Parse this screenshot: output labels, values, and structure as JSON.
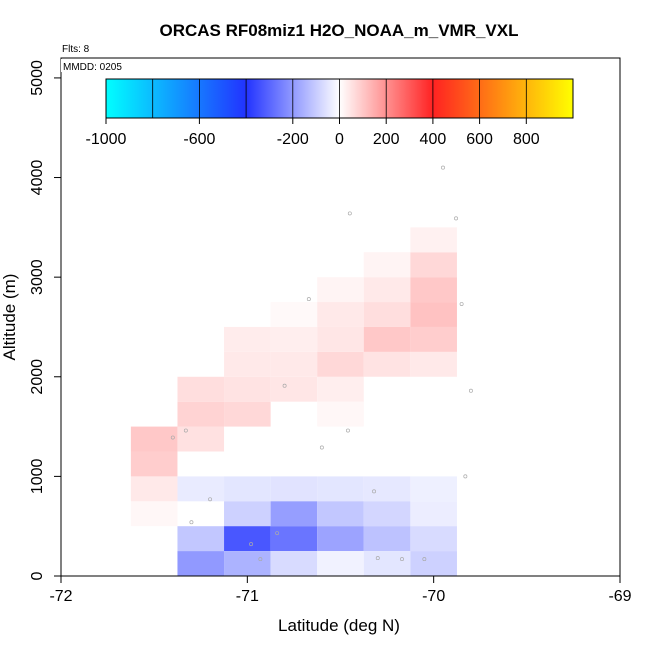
{
  "chart_data": {
    "type": "heatmap",
    "title": "ORCAS RF08miz1 H2O_NOAA_m_VMR_VXL",
    "xlabel": "Latitude (deg N)",
    "ylabel": "Altitude (m)",
    "xlim": [
      -72,
      -69
    ],
    "ylim": [
      0,
      5200
    ],
    "x_ticks": [
      -72,
      -71,
      -70,
      -69
    ],
    "x_tick_labels": [
      "-72",
      "-71",
      "-70",
      "-69"
    ],
    "y_ticks": [
      0,
      1000,
      2000,
      3000,
      4000,
      5000
    ],
    "y_tick_labels": [
      "0",
      "1000",
      "2000",
      "3000",
      "4000",
      "5000"
    ],
    "annotation_flts": "Flts: 8",
    "annotation_mmdd": "MMDD: 0205",
    "colorbar": {
      "range": [
        -1000,
        1000
      ],
      "ticks": [
        -1000,
        -600,
        -200,
        0,
        200,
        400,
        600,
        800
      ],
      "tick_labels": [
        "-1000",
        "-600",
        "-200",
        "0",
        "200",
        "400",
        "600",
        "800"
      ],
      "stops": [
        {
          "v": -1000,
          "color": "#00ffff"
        },
        {
          "v": -400,
          "color": "#2233ff"
        },
        {
          "v": 0,
          "color": "#ffffff"
        },
        {
          "v": 400,
          "color": "#ff2222"
        },
        {
          "v": 1000,
          "color": "#ffff00"
        }
      ]
    },
    "cell_width_deg": 0.25,
    "cell_height_m": 250,
    "cells": [
      {
        "lat": -71.5,
        "alt": 500,
        "value": 15
      },
      {
        "lat": -71.5,
        "alt": 750,
        "value": 40
      },
      {
        "lat": -71.5,
        "alt": 1000,
        "value": 90
      },
      {
        "lat": -71.5,
        "alt": 1250,
        "value": 100
      },
      {
        "lat": -71.25,
        "alt": 1250,
        "value": 55
      },
      {
        "lat": -71.25,
        "alt": 1500,
        "value": 80
      },
      {
        "lat": -71.25,
        "alt": 1750,
        "value": 60
      },
      {
        "lat": -71.0,
        "alt": 1500,
        "value": 70
      },
      {
        "lat": -71.0,
        "alt": 1750,
        "value": 50
      },
      {
        "lat": -71.0,
        "alt": 2000,
        "value": 40
      },
      {
        "lat": -71.0,
        "alt": 2250,
        "value": 35
      },
      {
        "lat": -70.75,
        "alt": 1750,
        "value": 45
      },
      {
        "lat": -70.75,
        "alt": 2000,
        "value": 40
      },
      {
        "lat": -70.75,
        "alt": 2250,
        "value": 30
      },
      {
        "lat": -70.75,
        "alt": 2500,
        "value": 10
      },
      {
        "lat": -70.5,
        "alt": 1500,
        "value": 15
      },
      {
        "lat": -70.5,
        "alt": 1750,
        "value": 30
      },
      {
        "lat": -70.5,
        "alt": 2000,
        "value": 70
      },
      {
        "lat": -70.5,
        "alt": 2250,
        "value": 45
      },
      {
        "lat": -70.5,
        "alt": 2500,
        "value": 40
      },
      {
        "lat": -70.5,
        "alt": 2750,
        "value": 20
      },
      {
        "lat": -70.25,
        "alt": 2000,
        "value": 50
      },
      {
        "lat": -70.25,
        "alt": 2250,
        "value": 100
      },
      {
        "lat": -70.25,
        "alt": 2500,
        "value": 60
      },
      {
        "lat": -70.25,
        "alt": 2750,
        "value": 40
      },
      {
        "lat": -70.25,
        "alt": 3000,
        "value": 20
      },
      {
        "lat": -70.0,
        "alt": 2000,
        "value": 40
      },
      {
        "lat": -70.0,
        "alt": 2250,
        "value": 90
      },
      {
        "lat": -70.0,
        "alt": 2500,
        "value": 110
      },
      {
        "lat": -70.0,
        "alt": 2750,
        "value": 100
      },
      {
        "lat": -70.0,
        "alt": 3000,
        "value": 70
      },
      {
        "lat": -70.0,
        "alt": 3250,
        "value": 25
      },
      {
        "lat": -71.25,
        "alt": 750,
        "value": -40
      },
      {
        "lat": -71.25,
        "alt": 250,
        "value": -110
      },
      {
        "lat": -71.25,
        "alt": 0,
        "value": -200
      },
      {
        "lat": -71.0,
        "alt": 750,
        "value": -50
      },
      {
        "lat": -71.0,
        "alt": 500,
        "value": -90
      },
      {
        "lat": -71.0,
        "alt": 250,
        "value": -330
      },
      {
        "lat": -71.0,
        "alt": 0,
        "value": -150
      },
      {
        "lat": -70.75,
        "alt": 750,
        "value": -55
      },
      {
        "lat": -70.75,
        "alt": 500,
        "value": -190
      },
      {
        "lat": -70.75,
        "alt": 250,
        "value": -270
      },
      {
        "lat": -70.75,
        "alt": 0,
        "value": -70
      },
      {
        "lat": -70.5,
        "alt": 750,
        "value": -50
      },
      {
        "lat": -70.5,
        "alt": 500,
        "value": -110
      },
      {
        "lat": -70.5,
        "alt": 250,
        "value": -180
      },
      {
        "lat": -70.5,
        "alt": 0,
        "value": -25
      },
      {
        "lat": -70.25,
        "alt": 750,
        "value": -45
      },
      {
        "lat": -70.25,
        "alt": 500,
        "value": -80
      },
      {
        "lat": -70.25,
        "alt": 250,
        "value": -120
      },
      {
        "lat": -70.25,
        "alt": 0,
        "value": -50
      },
      {
        "lat": -70.0,
        "alt": 750,
        "value": -30
      },
      {
        "lat": -70.0,
        "alt": 500,
        "value": -35
      },
      {
        "lat": -70.0,
        "alt": 250,
        "value": -70
      },
      {
        "lat": -70.0,
        "alt": 0,
        "value": -90
      }
    ],
    "points": [
      {
        "lat": -69.95,
        "alt": 4100
      },
      {
        "lat": -69.88,
        "alt": 3590
      },
      {
        "lat": -70.45,
        "alt": 3640
      },
      {
        "lat": -70.67,
        "alt": 2780
      },
      {
        "lat": -69.85,
        "alt": 2730
      },
      {
        "lat": -70.8,
        "alt": 1910
      },
      {
        "lat": -69.8,
        "alt": 1860
      },
      {
        "lat": -70.46,
        "alt": 1460
      },
      {
        "lat": -70.6,
        "alt": 1290
      },
      {
        "lat": -71.4,
        "alt": 1390
      },
      {
        "lat": -71.33,
        "alt": 1460
      },
      {
        "lat": -69.83,
        "alt": 1000
      },
      {
        "lat": -70.32,
        "alt": 850
      },
      {
        "lat": -71.2,
        "alt": 770
      },
      {
        "lat": -71.3,
        "alt": 540
      },
      {
        "lat": -70.84,
        "alt": 430
      },
      {
        "lat": -70.98,
        "alt": 320
      },
      {
        "lat": -70.93,
        "alt": 170
      },
      {
        "lat": -70.17,
        "alt": 170
      },
      {
        "lat": -70.05,
        "alt": 170
      },
      {
        "lat": -70.3,
        "alt": 180
      }
    ]
  }
}
